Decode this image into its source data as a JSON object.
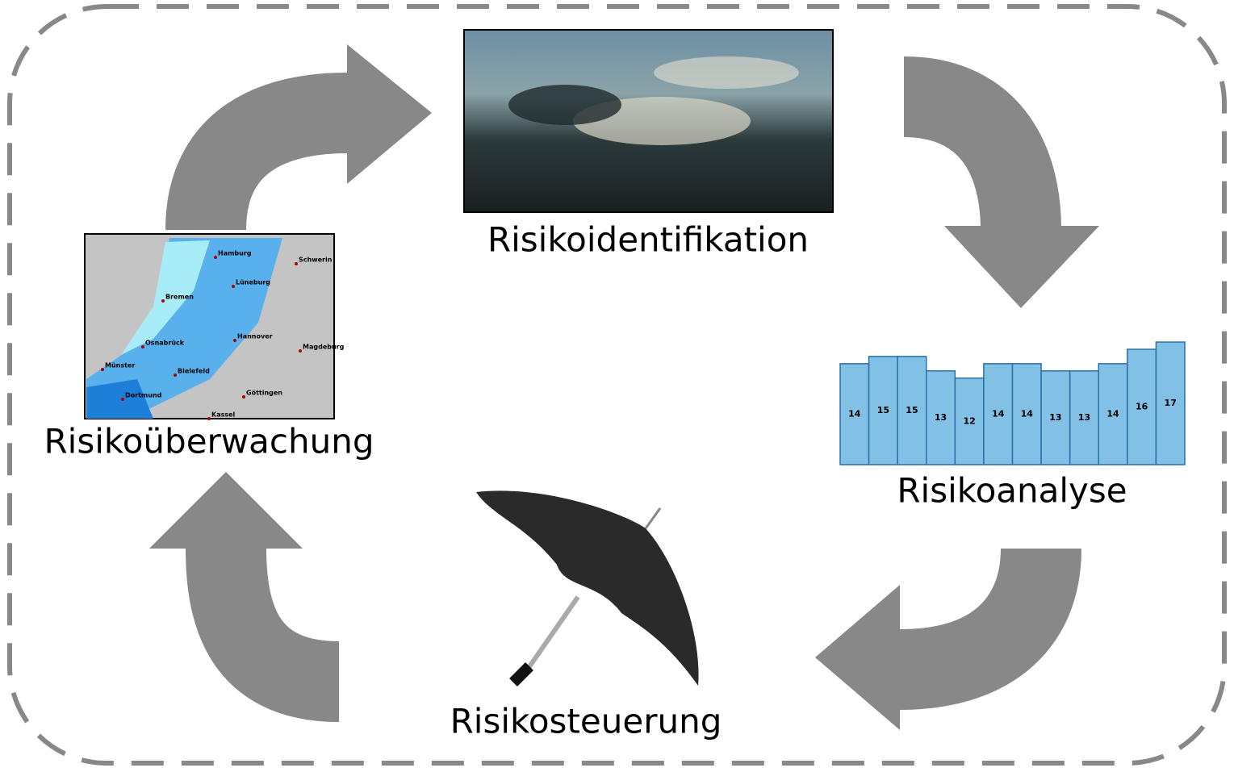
{
  "stages": [
    "Risikoidentifikation",
    "Risikoanalyse",
    "Risikosteuerung",
    "Risikoüberwachung"
  ],
  "bar_chart": {
    "values": [
      14,
      15,
      15,
      13,
      12,
      14,
      14,
      13,
      13,
      14,
      16,
      17
    ]
  },
  "map": {
    "cities": [
      "Hamburg",
      "Schwerin",
      "Lüneburg",
      "Bremen",
      "Hannover",
      "Osnabrück",
      "Magdeburg",
      "Münster",
      "Bielefeld",
      "Dortmund",
      "Göttingen",
      "Kassel"
    ]
  }
}
